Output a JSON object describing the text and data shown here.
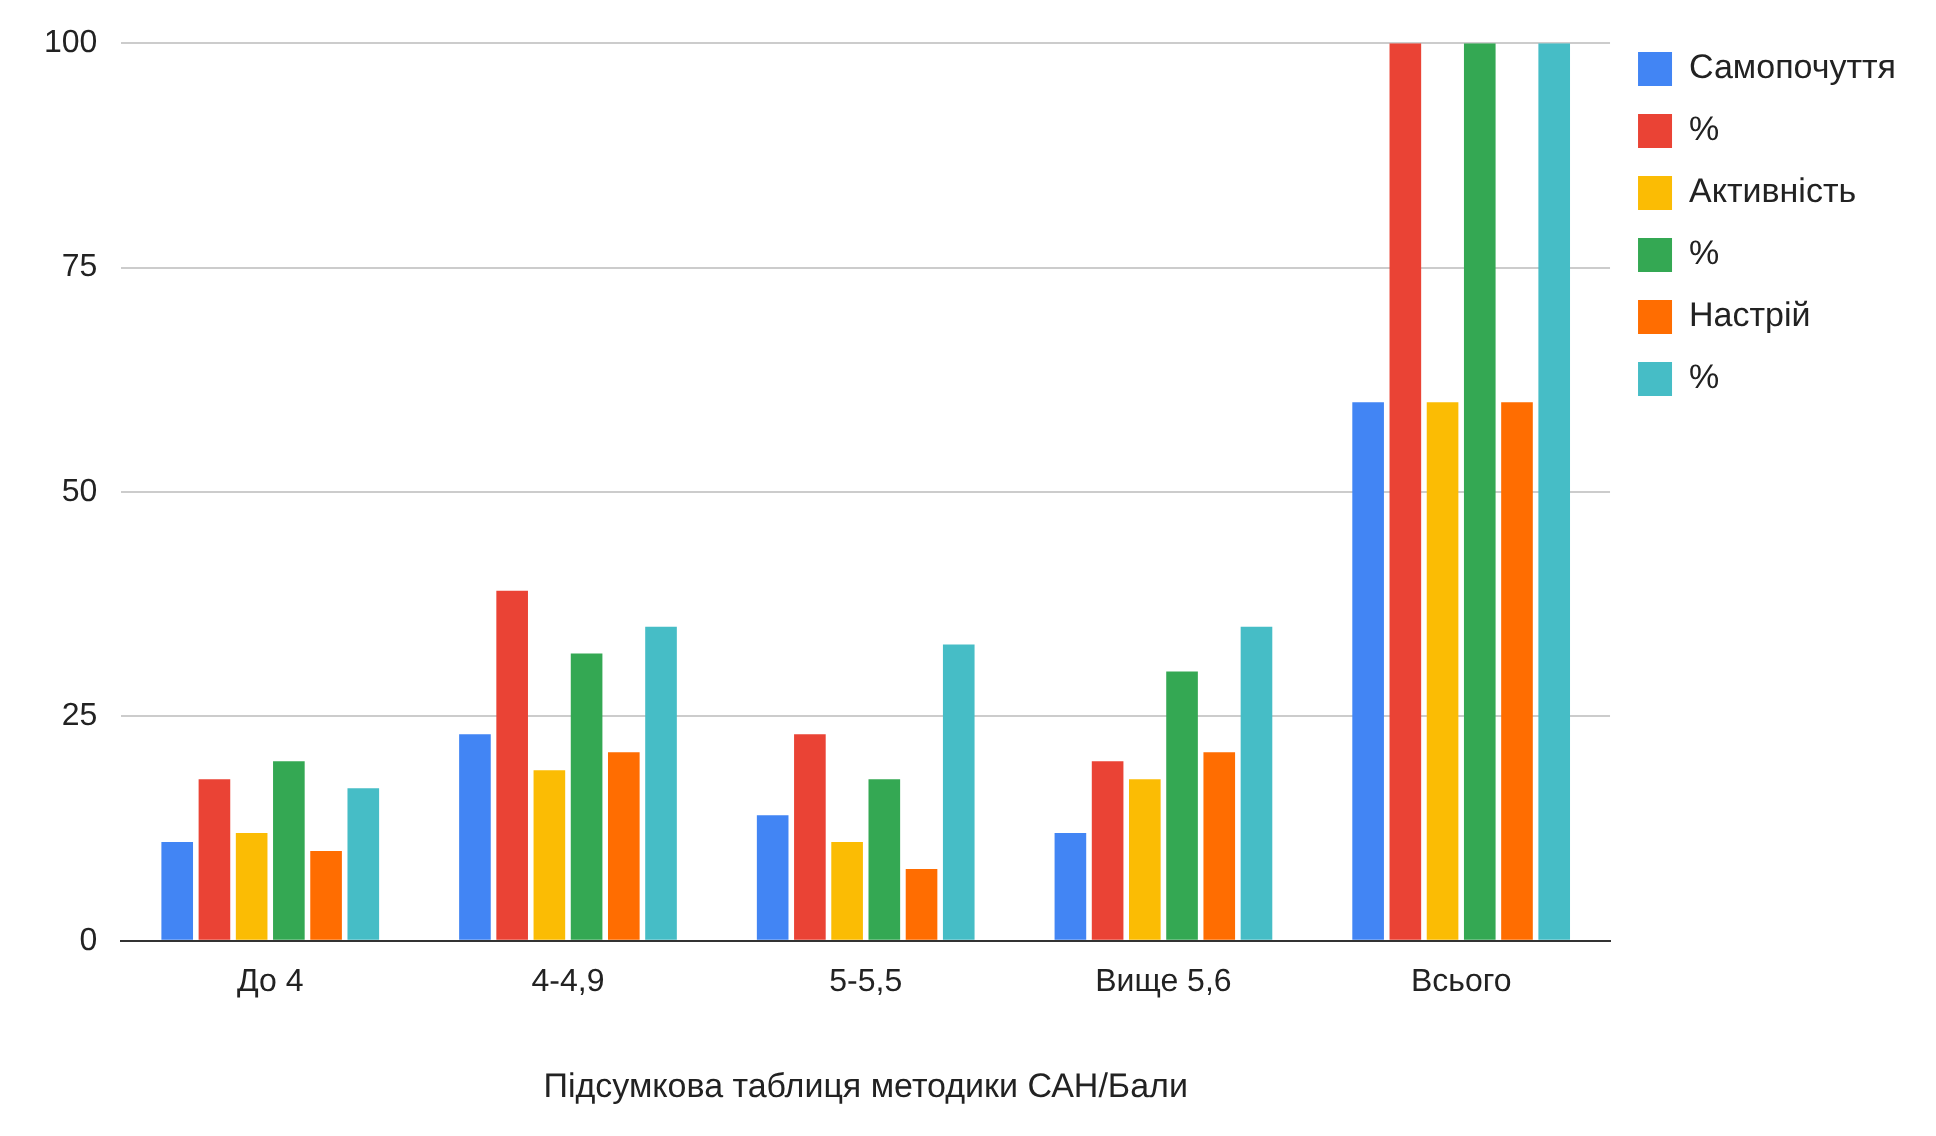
{
  "chart_data": {
    "type": "bar",
    "xlabel": "Підсумкова таблиця методики САН/Бали",
    "categories": [
      "До 4",
      "4-4,9",
      "5-5,5",
      "Вище 5,6",
      "Всього"
    ],
    "series": [
      {
        "name": "Самопочуття",
        "color": "#4285f4",
        "values": [
          11,
          23,
          14,
          12,
          60
        ]
      },
      {
        "name": "%",
        "color": "#ea4335",
        "values": [
          18,
          39,
          23,
          20,
          100
        ]
      },
      {
        "name": "Активність",
        "color": "#fbbc04",
        "values": [
          12,
          19,
          11,
          18,
          60
        ]
      },
      {
        "name": "%",
        "color": "#34a853",
        "values": [
          20,
          32,
          18,
          30,
          100
        ]
      },
      {
        "name": "Настрій",
        "color": "#ff6d01",
        "values": [
          10,
          21,
          8,
          21,
          60
        ]
      },
      {
        "name": "%",
        "color": "#46bdc6",
        "values": [
          17,
          35,
          33,
          35,
          100
        ]
      }
    ],
    "ylim": [
      0,
      100
    ],
    "yticks": [
      0,
      25,
      50,
      75,
      100
    ],
    "grid": "y",
    "legend": "right"
  }
}
